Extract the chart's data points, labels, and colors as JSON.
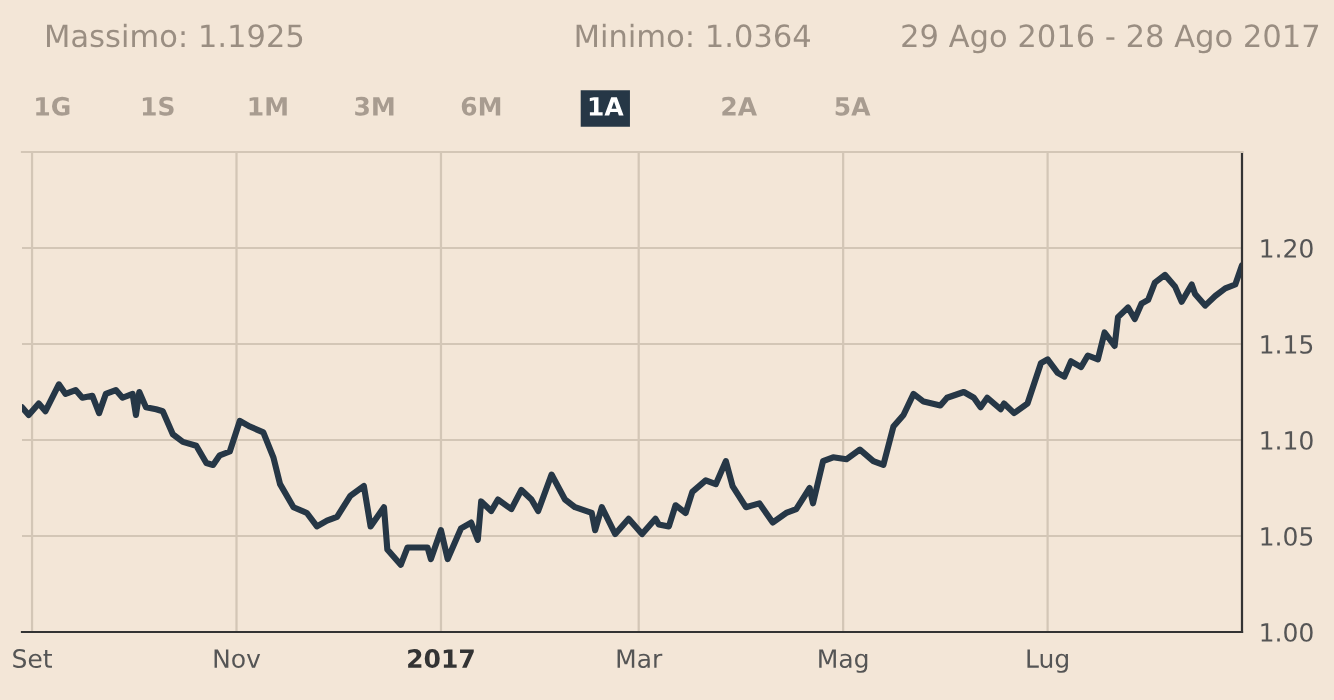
{
  "chart_data": {
    "type": "line",
    "annotations": [
      "Massimo: 1.1925",
      "Minimo: 1.0364",
      "29 Ago 2016 - 28 Ago 2017",
      "1G",
      "1S",
      "1M",
      "3M",
      "6M",
      "1A",
      "2A",
      "5A"
    ],
    "x": [
      "2016-08-29",
      "2016-08-31",
      "2016-09-03",
      "2016-09-05",
      "2016-09-09",
      "2016-09-11",
      "2016-09-14",
      "2016-09-16",
      "2016-09-19",
      "2016-09-21",
      "2016-09-23",
      "2016-09-26",
      "2016-09-28",
      "2016-10-01",
      "2016-10-02",
      "2016-10-03",
      "2016-10-05",
      "2016-10-08",
      "2016-10-10",
      "2016-10-13",
      "2016-10-16",
      "2016-10-20",
      "2016-10-23",
      "2016-10-25",
      "2016-10-27",
      "2016-10-30",
      "2016-11-02",
      "2016-11-05",
      "2016-11-09",
      "2016-11-12",
      "2016-11-14",
      "2016-11-18",
      "2016-11-22",
      "2016-11-25",
      "2016-11-28",
      "2016-12-01",
      "2016-12-05",
      "2016-12-09",
      "2016-12-11",
      "2016-12-15",
      "2016-12-16",
      "2016-12-20",
      "2016-12-22",
      "2016-12-28",
      "2016-12-29",
      "2017-01-01",
      "2017-01-03",
      "2017-01-07",
      "2017-01-10",
      "2017-01-12",
      "2017-01-13",
      "2017-01-16",
      "2017-01-18",
      "2017-01-22",
      "2017-01-25",
      "2017-01-28",
      "2017-01-30",
      "2017-02-03",
      "2017-02-07",
      "2017-02-10",
      "2017-02-15",
      "2017-02-16",
      "2017-02-18",
      "2017-02-22",
      "2017-02-26",
      "2017-03-02",
      "2017-03-06",
      "2017-03-07",
      "2017-03-10",
      "2017-03-12",
      "2017-03-15",
      "2017-03-17",
      "2017-03-21",
      "2017-03-24",
      "2017-03-27",
      "2017-03-29",
      "2017-04-02",
      "2017-04-06",
      "2017-04-10",
      "2017-04-14",
      "2017-04-17",
      "2017-04-21",
      "2017-04-22",
      "2017-04-25",
      "2017-04-28",
      "2017-05-02",
      "2017-05-06",
      "2017-05-10",
      "2017-05-13",
      "2017-05-16",
      "2017-05-19",
      "2017-05-22",
      "2017-05-25",
      "2017-05-30",
      "2017-06-01",
      "2017-06-06",
      "2017-06-09",
      "2017-06-11",
      "2017-06-13",
      "2017-06-17",
      "2017-06-18",
      "2017-06-21",
      "2017-06-25",
      "2017-06-29",
      "2017-07-01",
      "2017-07-04",
      "2017-07-06",
      "2017-07-08",
      "2017-07-11",
      "2017-07-13",
      "2017-07-16",
      "2017-07-18",
      "2017-07-21",
      "2017-07-22",
      "2017-07-25",
      "2017-07-27",
      "2017-07-29",
      "2017-07-31",
      "2017-08-02",
      "2017-08-05",
      "2017-08-08",
      "2017-08-10",
      "2017-08-13",
      "2017-08-14",
      "2017-08-17",
      "2017-08-20",
      "2017-08-23",
      "2017-08-26",
      "2017-08-28"
    ],
    "series": [
      {
        "color": "#263746",
        "values": [
          1.117,
          1.113,
          1.119,
          1.115,
          1.129,
          1.124,
          1.126,
          1.122,
          1.123,
          1.114,
          1.124,
          1.126,
          1.122,
          1.124,
          1.113,
          1.125,
          1.117,
          1.116,
          1.115,
          1.103,
          1.099,
          1.097,
          1.088,
          1.087,
          1.092,
          1.094,
          1.11,
          1.107,
          1.104,
          1.091,
          1.077,
          1.065,
          1.062,
          1.055,
          1.058,
          1.06,
          1.071,
          1.076,
          1.055,
          1.065,
          1.043,
          1.035,
          1.044,
          1.044,
          1.038,
          1.053,
          1.038,
          1.054,
          1.057,
          1.048,
          1.068,
          1.063,
          1.069,
          1.064,
          1.074,
          1.069,
          1.063,
          1.082,
          1.069,
          1.065,
          1.062,
          1.053,
          1.065,
          1.051,
          1.059,
          1.051,
          1.059,
          1.056,
          1.055,
          1.066,
          1.062,
          1.073,
          1.079,
          1.077,
          1.089,
          1.076,
          1.065,
          1.067,
          1.057,
          1.062,
          1.064,
          1.075,
          1.067,
          1.089,
          1.091,
          1.09,
          1.095,
          1.089,
          1.087,
          1.107,
          1.113,
          1.124,
          1.12,
          1.118,
          1.122,
          1.125,
          1.122,
          1.117,
          1.122,
          1.116,
          1.119,
          1.114,
          1.119,
          1.14,
          1.142,
          1.135,
          1.133,
          1.141,
          1.138,
          1.144,
          1.142,
          1.156,
          1.149,
          1.164,
          1.169,
          1.163,
          1.171,
          1.173,
          1.182,
          1.186,
          1.18,
          1.172,
          1.181,
          1.176,
          1.17,
          1.175,
          1.179,
          1.181,
          1.191
        ]
      }
    ],
    "xlim": [
      "2016-08-29",
      "2017-08-28"
    ],
    "xticks": [
      {
        "value": "2016-09-01",
        "label": "Set"
      },
      {
        "value": "2016-11-01",
        "label": "Nov"
      },
      {
        "value": "2017-01-01",
        "label": "2017"
      },
      {
        "value": "2017-03-01",
        "label": "Mar"
      },
      {
        "value": "2017-05-01",
        "label": "Mag"
      },
      {
        "value": "2017-07-01",
        "label": "Lug"
      }
    ],
    "ylim": [
      1.0,
      1.25
    ],
    "yticks": [
      {
        "value": 1.0,
        "label": "1.00"
      },
      {
        "value": 1.05,
        "label": "1.05"
      },
      {
        "value": 1.1,
        "label": "1.10"
      },
      {
        "value": 1.15,
        "label": "1.15"
      },
      {
        "value": 1.2,
        "label": "1.20"
      }
    ],
    "grid": true,
    "legend": false,
    "marker": "none",
    "line_style": "solid"
  }
}
